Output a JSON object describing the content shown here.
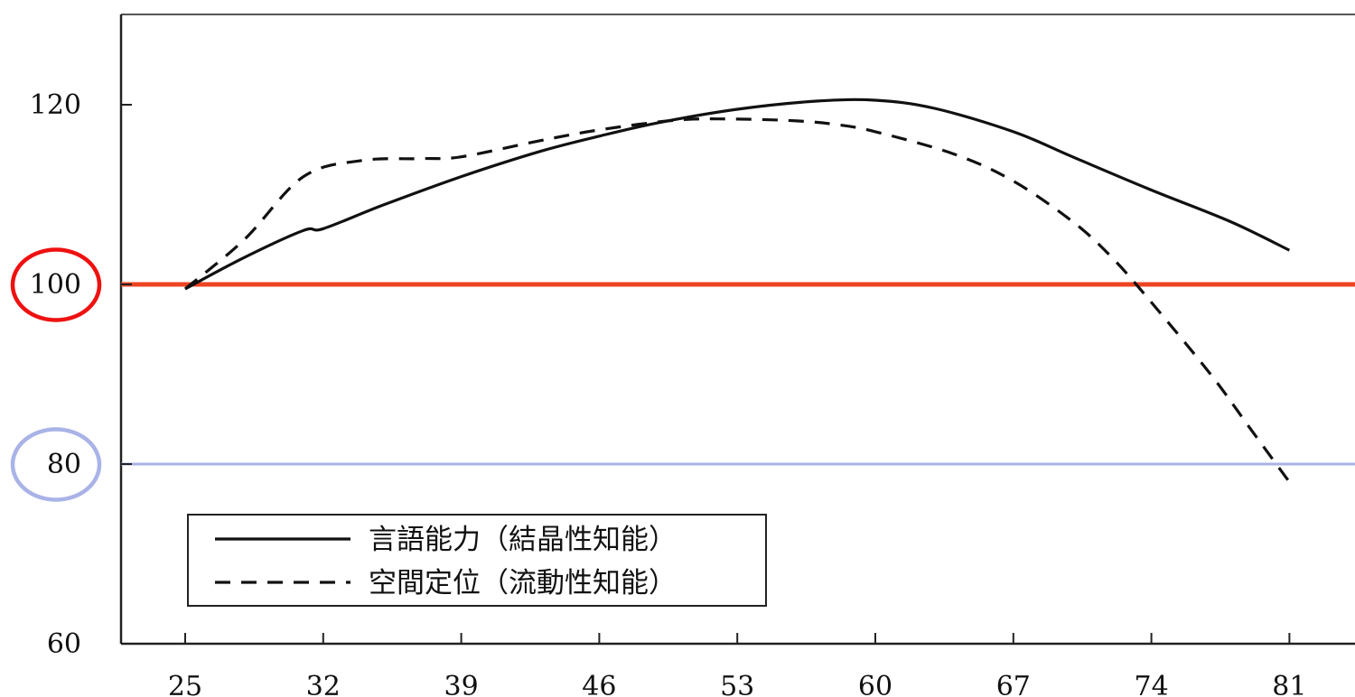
{
  "chart_data": {
    "type": "line",
    "x": [
      25,
      32,
      39,
      46,
      53,
      60,
      67,
      74,
      81
    ],
    "y_ticks": [
      60,
      80,
      100,
      120
    ],
    "xlim": [
      22,
      87
    ],
    "ylim": [
      60,
      130
    ],
    "grid": false,
    "legend_position": "bottom-left",
    "series": [
      {
        "name": "言語能力（結晶性知能）",
        "style": "solid",
        "color": "#111111",
        "points": [
          [
            25,
            99.5
          ],
          [
            28,
            103
          ],
          [
            31,
            106
          ],
          [
            32,
            106.2
          ],
          [
            35,
            108.8
          ],
          [
            39,
            112
          ],
          [
            43,
            114.8
          ],
          [
            46,
            116.5
          ],
          [
            49,
            118
          ],
          [
            53,
            119.5
          ],
          [
            57,
            120.4
          ],
          [
            60,
            120.5
          ],
          [
            63,
            119.6
          ],
          [
            67,
            117
          ],
          [
            70,
            114.2
          ],
          [
            74,
            110.5
          ],
          [
            78,
            107
          ],
          [
            81,
            103.8
          ]
        ]
      },
      {
        "name": "空間定位（流動性知能）",
        "style": "dashed",
        "color": "#111111",
        "points": [
          [
            25,
            99.5
          ],
          [
            28,
            105
          ],
          [
            31,
            112
          ],
          [
            34,
            113.8
          ],
          [
            37,
            114
          ],
          [
            39,
            114.2
          ],
          [
            43,
            116
          ],
          [
            46,
            117.2
          ],
          [
            50,
            118.3
          ],
          [
            53,
            118.4
          ],
          [
            56,
            118.2
          ],
          [
            58,
            117.8
          ],
          [
            60,
            117
          ],
          [
            64,
            114.5
          ],
          [
            67,
            111.5
          ],
          [
            70,
            107
          ],
          [
            72,
            103
          ],
          [
            74,
            98
          ],
          [
            77,
            90
          ],
          [
            79,
            84
          ],
          [
            81,
            78
          ]
        ]
      }
    ],
    "reference_lines": [
      {
        "y": 100,
        "color": "#ee4422"
      },
      {
        "y": 80,
        "color": "#a9b3e6"
      }
    ],
    "highlighted_ticks": [
      {
        "value": 100,
        "color": "#ee1111"
      },
      {
        "value": 80,
        "color": "#a9b3e6"
      }
    ]
  }
}
